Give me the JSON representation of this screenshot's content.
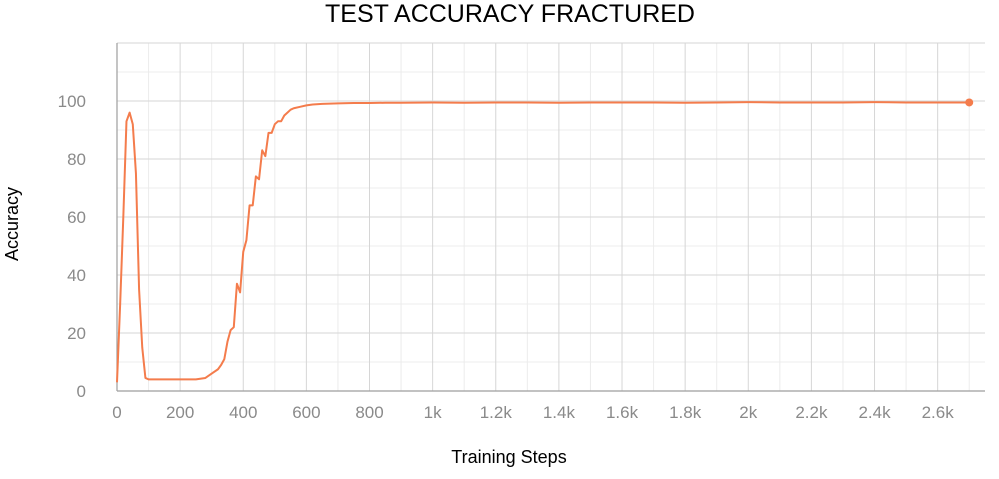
{
  "chart_data": {
    "type": "line",
    "title": "TEST ACCURACY FRACTURED",
    "xlabel": "Training Steps",
    "ylabel": "Accuracy",
    "xlim": [
      0,
      2750
    ],
    "ylim": [
      0,
      120
    ],
    "x_ticks": [
      0,
      200,
      400,
      600,
      800,
      1000,
      1200,
      1400,
      1600,
      1800,
      2000,
      2200,
      2400,
      2600
    ],
    "x_tick_labels": [
      "0",
      "200",
      "400",
      "600",
      "800",
      "1k",
      "1.2k",
      "1.4k",
      "1.6k",
      "1.8k",
      "2k",
      "2.2k",
      "2.4k",
      "2.6k"
    ],
    "y_ticks": [
      0,
      20,
      40,
      60,
      80,
      100
    ],
    "y_tick_labels": [
      "0",
      "20",
      "40",
      "60",
      "80",
      "100"
    ],
    "grid": true,
    "line_color": "#f47c4c",
    "series": [
      {
        "x": [
          0,
          10,
          20,
          30,
          40,
          50,
          60,
          70,
          80,
          90,
          100,
          120,
          150,
          200,
          250,
          280,
          300,
          320,
          330,
          340,
          350,
          360,
          370,
          380,
          390,
          400,
          410,
          420,
          430,
          440,
          450,
          460,
          470,
          480,
          490,
          500,
          510,
          520,
          530,
          540,
          550,
          560,
          580,
          600,
          620,
          650,
          700,
          750,
          800,
          850,
          900,
          1000,
          1100,
          1200,
          1300,
          1400,
          1500,
          1600,
          1700,
          1800,
          1900,
          2000,
          2100,
          2200,
          2300,
          2400,
          2500,
          2600,
          2700
        ],
        "y": [
          3,
          30,
          60,
          93,
          96,
          92,
          75,
          35,
          15,
          4.5,
          4,
          4,
          4,
          4,
          4,
          4.5,
          6,
          7.5,
          9,
          11,
          17,
          21,
          22,
          37,
          34,
          48,
          52,
          64,
          64,
          74,
          73,
          83,
          81,
          89,
          89,
          92,
          93,
          93,
          95,
          96,
          97,
          97.5,
          98,
          98.5,
          98.8,
          99,
          99.2,
          99.3,
          99.3,
          99.4,
          99.4,
          99.5,
          99.4,
          99.5,
          99.5,
          99.4,
          99.5,
          99.5,
          99.5,
          99.4,
          99.5,
          99.6,
          99.5,
          99.5,
          99.5,
          99.6,
          99.5,
          99.5,
          99.5
        ]
      }
    ]
  }
}
